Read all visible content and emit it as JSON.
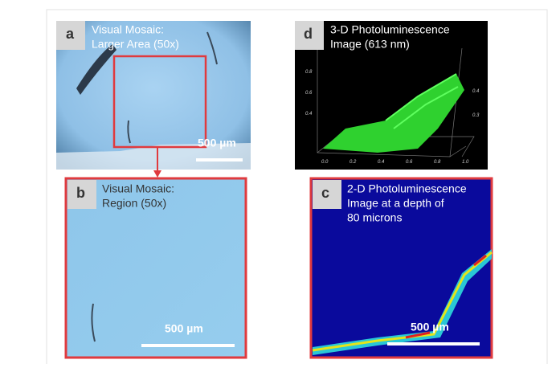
{
  "panels": [
    {
      "letter": "a",
      "caption": [
        "Visual Mosaic:",
        "Larger Area (50x)"
      ],
      "scale_bar": "500 µm"
    },
    {
      "letter": "d",
      "caption": [
        "3-D Photoluminescence",
        "Image (613 nm)"
      ],
      "x_ticks": [
        "0.0",
        "0.2",
        "0.4",
        "0.6",
        "0.8",
        "1.0"
      ],
      "left_ticks": [
        "0.8",
        "0.6",
        "0.4"
      ],
      "right_ticks": [
        "0.4",
        "0.3"
      ]
    },
    {
      "letter": "b",
      "caption": [
        "Visual Mosaic:",
        "Region (50x)"
      ],
      "scale_bar": "500 µm"
    },
    {
      "letter": "c",
      "caption": [
        "2-D Photoluminescence",
        "Image at a depth of",
        "80 microns"
      ],
      "scale_bar": "500 µm"
    }
  ]
}
